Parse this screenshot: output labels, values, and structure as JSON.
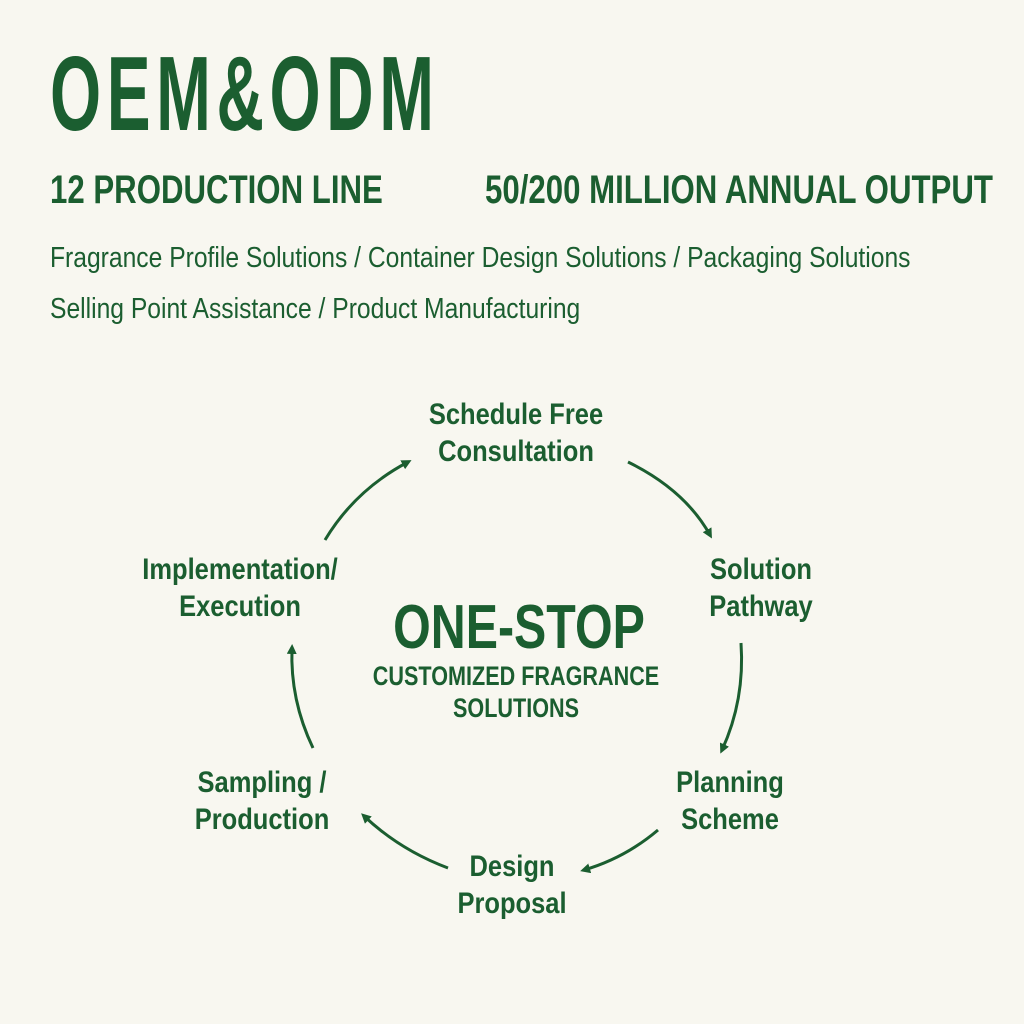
{
  "title": "OEM&ODM",
  "stats": {
    "left": "12 PRODUCTION LINE",
    "right": "50/200 MILLION ANNUAL OUTPUT"
  },
  "services": {
    "line1": "Fragrance Profile Solutions / Container Design Solutions / Packaging Solutions",
    "line2": "Selling Point Assistance / Product Manufacturing"
  },
  "center": {
    "title": "ONE-STOP",
    "subtitle_line1": "CUSTOMIZED FRAGRANCE",
    "subtitle_line2": "SOLUTIONS"
  },
  "steps": [
    {
      "line1": "Schedule Free",
      "line2": "Consultation"
    },
    {
      "line1": "Solution",
      "line2": "Pathway"
    },
    {
      "line1": "Planning",
      "line2": "Scheme"
    },
    {
      "line1": "Design",
      "line2": "Proposal"
    },
    {
      "line1": "Sampling /",
      "line2": "Production"
    },
    {
      "line1": "Implementation/",
      "line2": "Execution"
    }
  ],
  "colors": {
    "accent": "#1b5e30",
    "background": "#f8f7f0"
  }
}
